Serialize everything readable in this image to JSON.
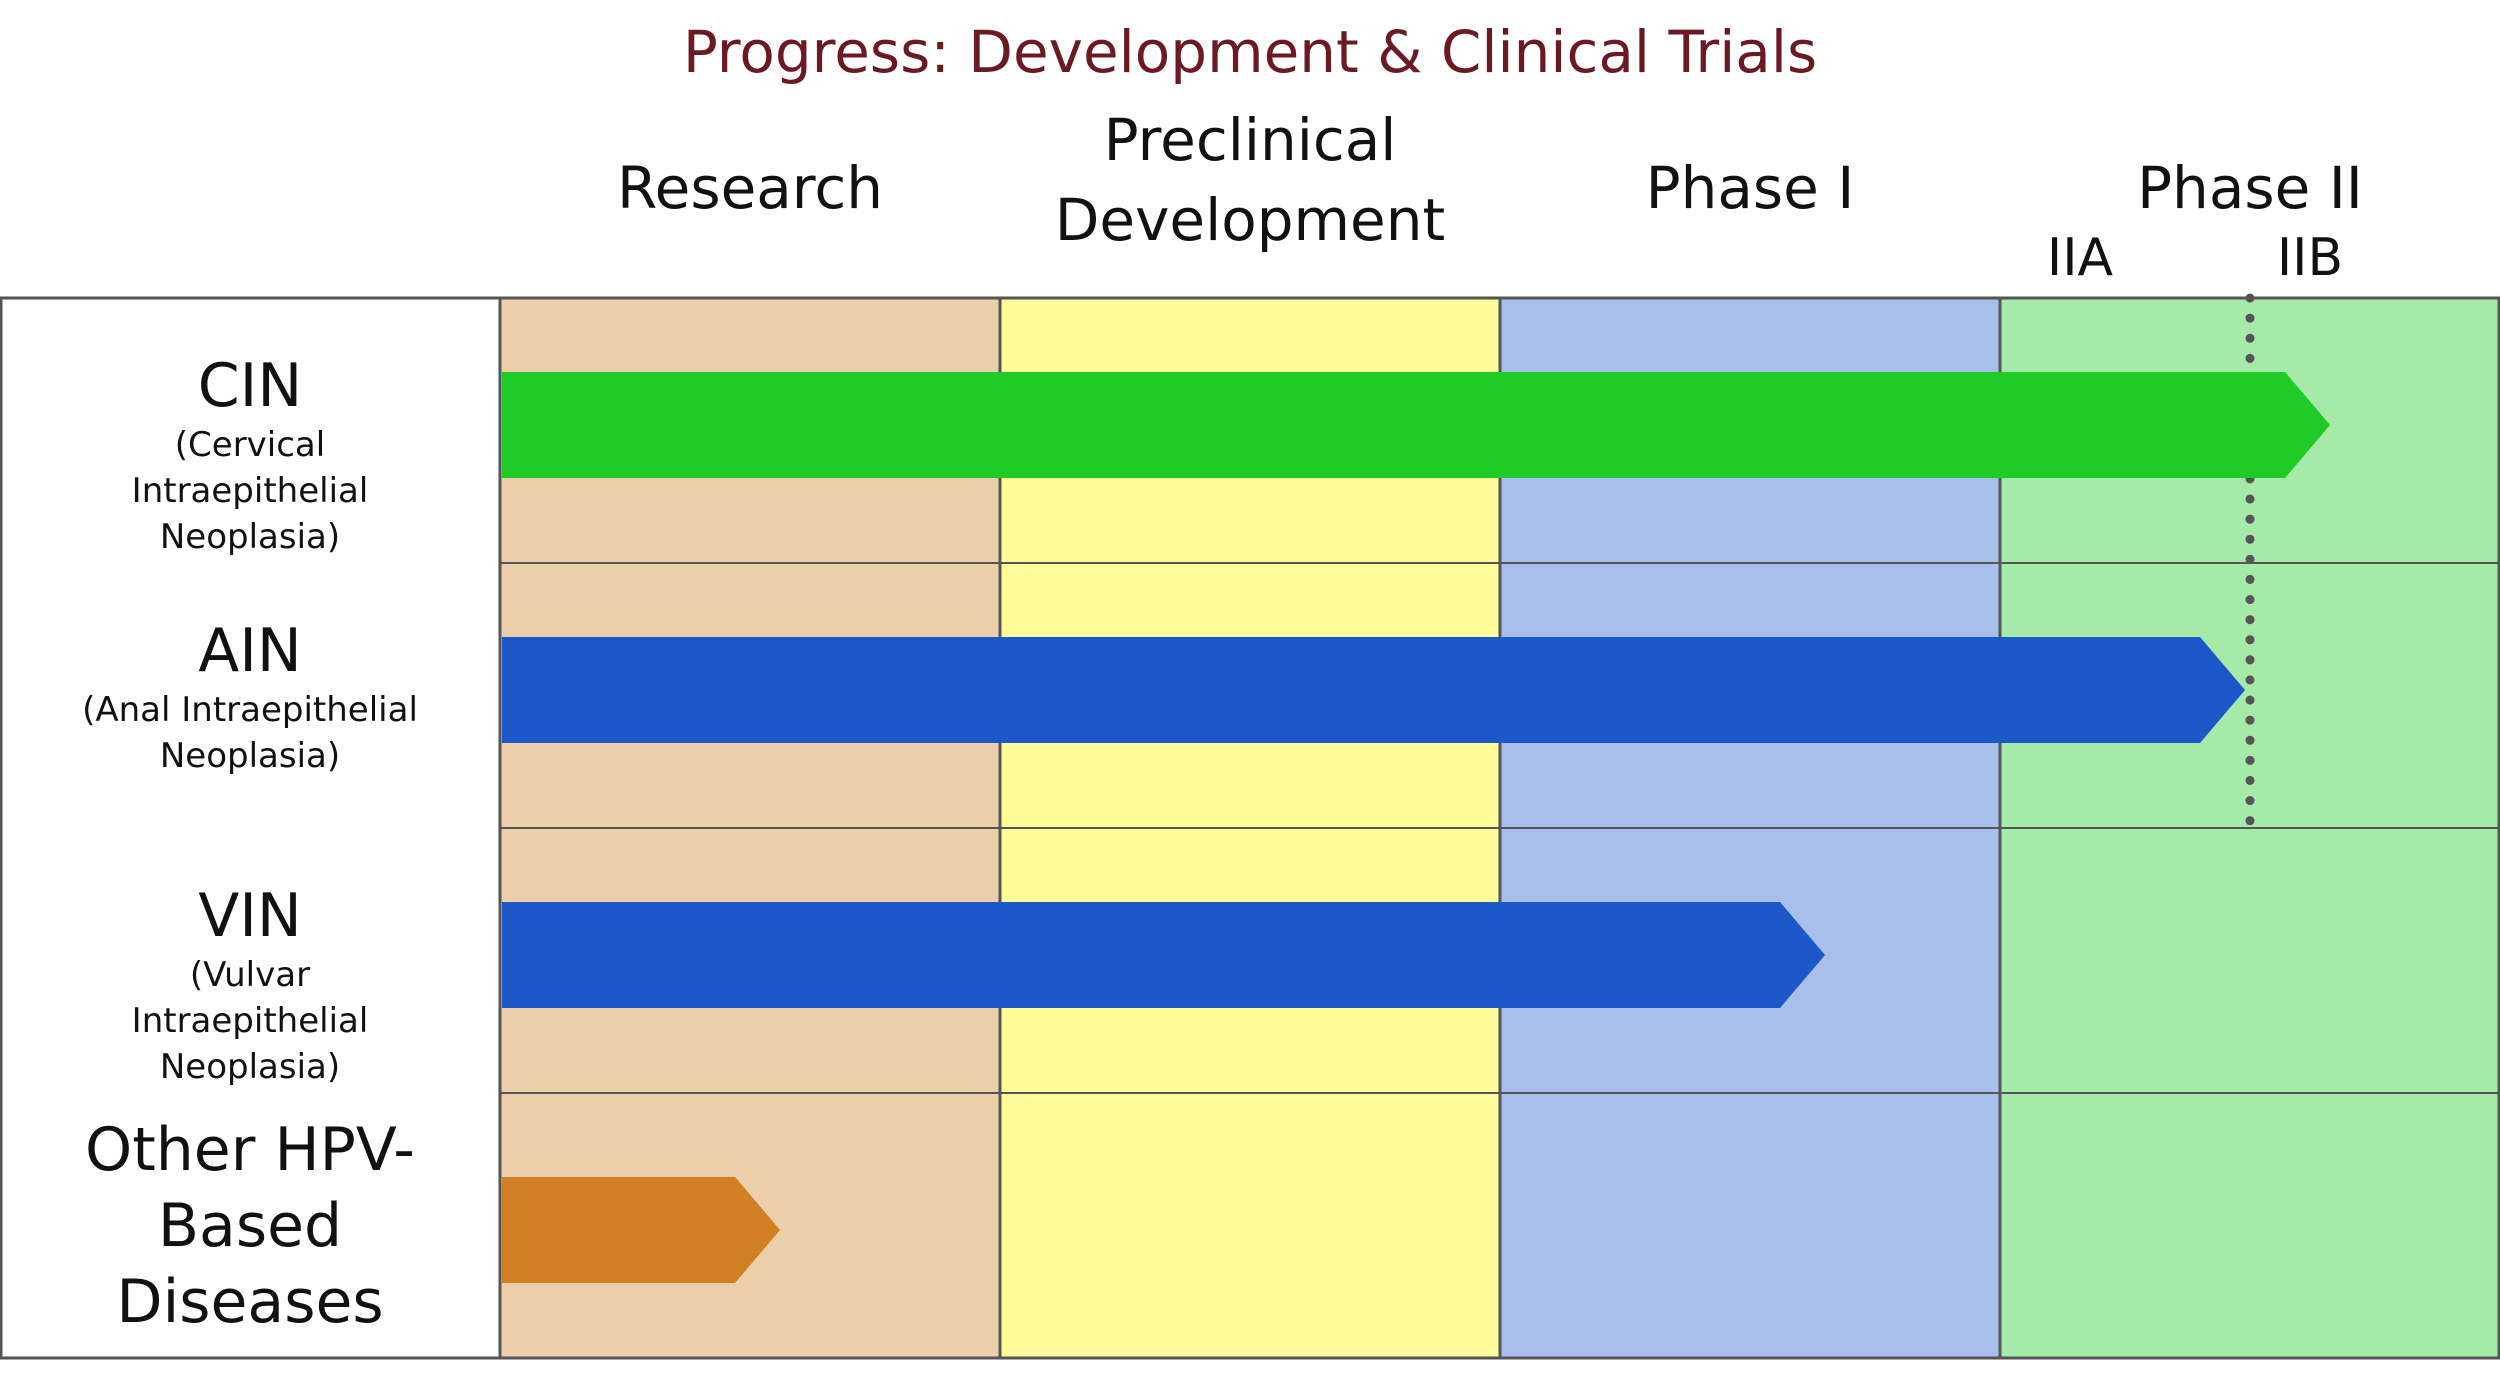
{
  "title": "Progress: Development & Clinical Trials",
  "stages": [
    "Research",
    "Preclinical Development",
    "Phase I",
    "Phase II"
  ],
  "substages": [
    "IIA",
    "IIB"
  ],
  "colors": {
    "title": "#6b1a24",
    "stage_fills": [
      "#ecceaa",
      "#fefd9a",
      "#a7bfea",
      "#a6eaa9"
    ],
    "grid_line": "#555555",
    "divider_dots": "#555555"
  },
  "chart_data": {
    "type": "bar",
    "title": "Progress: Development & Clinical Trials",
    "xaxis_categories": [
      "Research",
      "Preclinical Development",
      "Phase I",
      "Phase II"
    ],
    "substages": [
      "IIA",
      "IIB"
    ],
    "xlim": [
      0,
      4
    ],
    "rows": [
      {
        "name": "CIN",
        "subtitle": "(Cervical Intraepithelial Neoplasia)",
        "progress": 3.66,
        "color": "#1fcb27"
      },
      {
        "name": "AIN",
        "subtitle": "(Anal Intraepithelial Neoplasia)",
        "progress": 3.49,
        "color": "#1c58c8"
      },
      {
        "name": "VIN",
        "subtitle": "(Vulvar Intraepithelial Neoplasia)",
        "progress": 2.65,
        "color": "#1c58c8"
      },
      {
        "name": "Other HPV-Based Diseases",
        "subtitle": "",
        "progress": 0.56,
        "color": "#d17f23"
      }
    ]
  }
}
